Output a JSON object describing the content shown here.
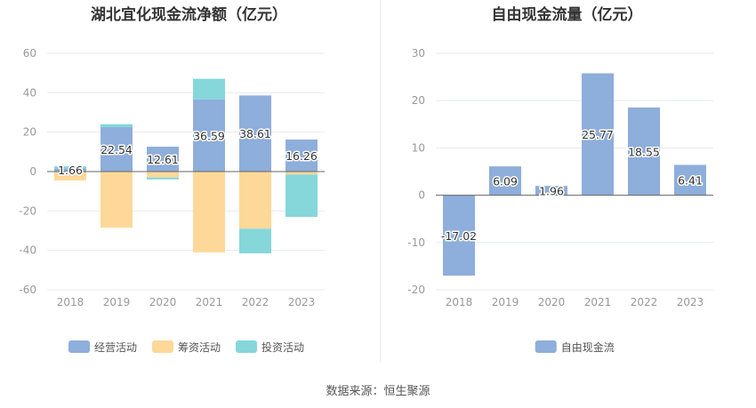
{
  "chart_data": [
    {
      "type": "bar",
      "title": "湖北宜化现金流净额（亿元）",
      "categories": [
        "2018",
        "2019",
        "2020",
        "2021",
        "2022",
        "2023"
      ],
      "series": [
        {
          "name": "经营活动",
          "color": "#8eaedb",
          "values": [
            1.66,
            22.54,
            12.61,
            36.59,
            38.61,
            16.26
          ]
        },
        {
          "name": "筹资活动",
          "color": "#fed898",
          "values": [
            -4.5,
            -28.5,
            -3.0,
            -41.0,
            -29.0,
            -1.5
          ]
        },
        {
          "name": "投资活动",
          "color": "#85d7da",
          "values": [
            1.0,
            1.5,
            -1.0,
            10.5,
            -12.5,
            -21.5
          ]
        }
      ],
      "data_labels": [
        "1.66",
        "22.54",
        "12.61",
        "36.59",
        "38.61",
        "16.26"
      ],
      "ylim": [
        -60,
        60
      ],
      "yticks": [
        -60,
        -40,
        -20,
        0,
        20,
        40,
        60
      ],
      "stacked": true,
      "grid": true,
      "legend": "bottom"
    },
    {
      "type": "bar",
      "title": "自由现金流量（亿元）",
      "categories": [
        "2018",
        "2019",
        "2020",
        "2021",
        "2022",
        "2023"
      ],
      "series": [
        {
          "name": "自由现金流",
          "color": "#8eaedb",
          "values": [
            -17.02,
            6.09,
            1.96,
            25.77,
            18.55,
            6.41
          ]
        }
      ],
      "data_labels": [
        "-17.02",
        "6.09",
        "1.96",
        "25.77",
        "18.55",
        "6.41"
      ],
      "ylim": [
        -20,
        30
      ],
      "yticks": [
        -20,
        -10,
        0,
        10,
        20,
        30
      ],
      "grid": true,
      "legend": "bottom"
    }
  ],
  "footer": "数据来源：恒生聚源"
}
